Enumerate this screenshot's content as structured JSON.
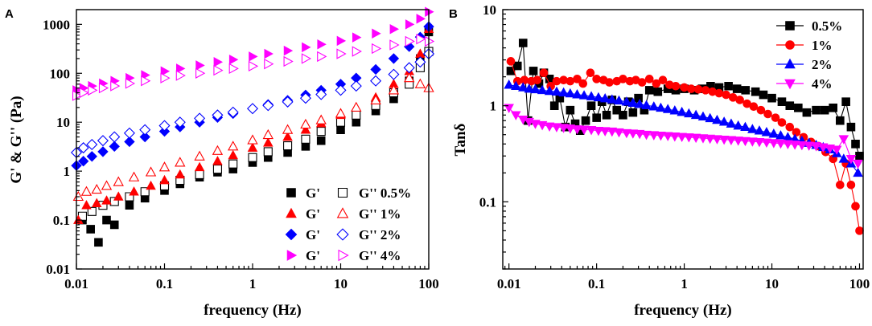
{
  "chart_data": [
    {
      "panel": "A",
      "type": "scatter",
      "xlabel": "frequency (Hz)",
      "ylabel": "G' & G'' (Pa)",
      "xscale": "log",
      "yscale": "log",
      "xlim": [
        0.01,
        100
      ],
      "ylim": [
        0.01,
        2000
      ],
      "xticks": [
        0.01,
        0.1,
        1,
        10,
        100
      ],
      "xtick_labels": [
        "0.01",
        "0.1",
        "1",
        "10",
        "100"
      ],
      "yticks": [
        0.01,
        0.1,
        1,
        10,
        100,
        1000
      ],
      "ytick_labels": [
        "0.01",
        "0.1",
        "1",
        "10",
        "100",
        "1000"
      ],
      "legend_position": "bottom-right",
      "legend_rows": [
        {
          "storage": "G'",
          "loss": "G''",
          "label": "0.5%",
          "color": "#000000"
        },
        {
          "storage": "G'",
          "loss": "G''",
          "label": "1%",
          "color": "#ff0000"
        },
        {
          "storage": "G'",
          "loss": "G''",
          "label": "2%",
          "color": "#0000ff"
        },
        {
          "storage": "G'",
          "loss": "G''",
          "label": "4%",
          "color": "#ff00ff"
        }
      ],
      "series": [
        {
          "name": "G' 0.5%",
          "marker": "square",
          "filled": true,
          "color": "#000000",
          "x": [
            0.0117,
            0.0145,
            0.0178,
            0.022,
            0.027,
            0.04,
            0.06,
            0.1,
            0.15,
            0.25,
            0.4,
            0.6,
            1,
            1.5,
            2.5,
            4,
            6,
            10,
            15,
            25,
            40,
            60,
            80,
            100
          ],
          "y": [
            0.1,
            0.065,
            0.035,
            0.1,
            0.08,
            0.2,
            0.28,
            0.4,
            0.55,
            0.75,
            0.95,
            1.1,
            1.5,
            1.9,
            2.4,
            3.2,
            4.2,
            7,
            10,
            17,
            30,
            70,
            200,
            700
          ]
        },
        {
          "name": "G'' 0.5%",
          "marker": "square",
          "filled": false,
          "color": "#000000",
          "x": [
            0.0117,
            0.015,
            0.02,
            0.027,
            0.04,
            0.06,
            0.1,
            0.15,
            0.25,
            0.4,
            0.6,
            1,
            1.5,
            2.5,
            4,
            6,
            10,
            15,
            25,
            40,
            60,
            80,
            100
          ],
          "y": [
            0.12,
            0.15,
            0.2,
            0.24,
            0.3,
            0.38,
            0.5,
            0.65,
            0.85,
            1.1,
            1.4,
            1.9,
            2.5,
            3.3,
            4.5,
            6.5,
            10,
            14,
            22,
            40,
            60,
            130,
            280
          ]
        },
        {
          "name": "G' 1%",
          "marker": "triangle-up",
          "filled": true,
          "color": "#ff0000",
          "x": [
            0.0105,
            0.013,
            0.017,
            0.022,
            0.03,
            0.045,
            0.07,
            0.1,
            0.15,
            0.25,
            0.4,
            0.6,
            1,
            1.5,
            2.5,
            4,
            6,
            10,
            15,
            25,
            40,
            60,
            80,
            100
          ],
          "y": [
            0.1,
            0.2,
            0.22,
            0.25,
            0.3,
            0.38,
            0.5,
            0.65,
            0.85,
            1.2,
            1.6,
            2.1,
            3,
            3.8,
            5,
            7,
            9.5,
            14,
            20,
            32,
            60,
            110,
            250,
            800
          ]
        },
        {
          "name": "G'' 1%",
          "marker": "triangle-up",
          "filled": false,
          "color": "#ff0000",
          "x": [
            0.0105,
            0.013,
            0.017,
            0.022,
            0.03,
            0.045,
            0.07,
            0.1,
            0.15,
            0.25,
            0.4,
            0.6,
            1,
            1.5,
            2.5,
            4,
            6,
            10,
            15,
            25,
            40,
            60,
            80,
            100
          ],
          "y": [
            0.3,
            0.38,
            0.42,
            0.5,
            0.6,
            0.75,
            0.95,
            1.2,
            1.5,
            2,
            2.6,
            3.2,
            4.3,
            5.5,
            7,
            9,
            11,
            15,
            20,
            28,
            45,
            80,
            60,
            50
          ]
        },
        {
          "name": "G' 2%",
          "marker": "diamond",
          "filled": true,
          "color": "#0000ff",
          "x": [
            0.01,
            0.012,
            0.015,
            0.02,
            0.027,
            0.04,
            0.06,
            0.1,
            0.15,
            0.25,
            0.4,
            0.6,
            1,
            1.5,
            2.5,
            4,
            6,
            10,
            15,
            25,
            40,
            60,
            80,
            100
          ],
          "y": [
            1.3,
            1.6,
            2,
            2.5,
            3.2,
            4,
            5,
            6.5,
            8,
            10,
            12.5,
            15,
            19,
            23,
            28,
            36,
            45,
            60,
            80,
            120,
            200,
            350,
            550,
            900
          ]
        },
        {
          "name": "G'' 2%",
          "marker": "diamond",
          "filled": false,
          "color": "#0000ff",
          "x": [
            0.01,
            0.012,
            0.015,
            0.02,
            0.027,
            0.04,
            0.06,
            0.1,
            0.15,
            0.25,
            0.4,
            0.6,
            1,
            1.5,
            2.5,
            4,
            6,
            10,
            15,
            25,
            40,
            60,
            80,
            100
          ],
          "y": [
            2.4,
            3,
            3.5,
            4.2,
            5,
            6,
            7,
            8.5,
            10,
            12,
            14,
            16,
            19,
            22,
            26,
            31,
            37,
            45,
            55,
            70,
            95,
            130,
            170,
            250
          ]
        },
        {
          "name": "G' 4%",
          "marker": "triangle-right",
          "filled": true,
          "color": "#ff00ff",
          "x": [
            0.01,
            0.012,
            0.015,
            0.02,
            0.027,
            0.04,
            0.06,
            0.1,
            0.15,
            0.25,
            0.4,
            0.6,
            1,
            1.5,
            2.5,
            4,
            6,
            10,
            15,
            25,
            40,
            60,
            80,
            100
          ],
          "y": [
            45,
            50,
            55,
            62,
            70,
            80,
            92,
            110,
            125,
            145,
            170,
            190,
            220,
            250,
            290,
            340,
            390,
            460,
            540,
            650,
            800,
            1000,
            1300,
            1800
          ]
        },
        {
          "name": "G'' 4%",
          "marker": "triangle-right",
          "filled": false,
          "color": "#ff00ff",
          "x": [
            0.01,
            0.012,
            0.015,
            0.02,
            0.027,
            0.04,
            0.06,
            0.1,
            0.15,
            0.25,
            0.4,
            0.6,
            1,
            1.5,
            2.5,
            4,
            6,
            10,
            15,
            25,
            40,
            60,
            80,
            100
          ],
          "y": [
            35,
            40,
            45,
            50,
            55,
            62,
            70,
            80,
            90,
            100,
            115,
            125,
            140,
            155,
            175,
            200,
            220,
            250,
            280,
            320,
            380,
            450,
            500,
            450
          ]
        }
      ]
    },
    {
      "panel": "B",
      "type": "line",
      "xlabel": "frequency (Hz)",
      "ylabel": "Tanδ",
      "xscale": "log",
      "yscale": "log",
      "xlim": [
        0.0085,
        110
      ],
      "ylim": [
        0.02,
        10
      ],
      "xticks": [
        0.01,
        0.1,
        1,
        10,
        100
      ],
      "xtick_labels": [
        "0.01",
        "0.1",
        "1",
        "10",
        "100"
      ],
      "yticks": [
        0.1,
        1,
        10
      ],
      "ytick_labels": [
        "0.1",
        "1",
        "10"
      ],
      "legend_position": "top-right",
      "series": [
        {
          "name": "0.5%",
          "marker": "square",
          "color": "#000000",
          "x": [
            0.0105,
            0.0125,
            0.0145,
            0.0165,
            0.019,
            0.022,
            0.025,
            0.029,
            0.033,
            0.038,
            0.044,
            0.05,
            0.057,
            0.065,
            0.075,
            0.087,
            0.1,
            0.115,
            0.13,
            0.15,
            0.17,
            0.2,
            0.23,
            0.26,
            0.3,
            0.35,
            0.4,
            0.5,
            0.65,
            0.8,
            1,
            1.3,
            1.6,
            2,
            2.5,
            3.2,
            4,
            5,
            6.5,
            8,
            10,
            13,
            16,
            20,
            25,
            32,
            40,
            50,
            60,
            70,
            80,
            90,
            100
          ],
          "y": [
            2.3,
            2.6,
            4.5,
            0.7,
            2.3,
            1.7,
            2.2,
            1.9,
            1.0,
            1.2,
            0.6,
            0.9,
            0.65,
            0.55,
            0.7,
            1.0,
            0.75,
            1.1,
            0.8,
            1.15,
            0.9,
            0.8,
            1.1,
            0.85,
            1.2,
            0.9,
            1.45,
            1.4,
            1.5,
            1.45,
            1.5,
            1.45,
            1.5,
            1.6,
            1.55,
            1.6,
            1.5,
            1.45,
            1.4,
            1.3,
            1.2,
            1.1,
            1.0,
            0.95,
            0.85,
            0.9,
            0.9,
            0.95,
            0.7,
            1.1,
            0.6,
            0.4,
            0.3
          ]
        },
        {
          "name": "1%",
          "marker": "circle",
          "color": "#ff0000",
          "x": [
            0.0105,
            0.0125,
            0.015,
            0.018,
            0.021,
            0.025,
            0.03,
            0.035,
            0.042,
            0.05,
            0.06,
            0.07,
            0.085,
            0.1,
            0.12,
            0.14,
            0.17,
            0.2,
            0.24,
            0.28,
            0.33,
            0.4,
            0.48,
            0.57,
            0.68,
            0.8,
            1,
            1.2,
            1.45,
            1.75,
            2.1,
            2.5,
            3,
            3.6,
            4.3,
            5.2,
            6.2,
            7.5,
            9,
            11,
            13,
            16,
            19,
            23,
            28,
            34,
            41,
            50,
            60,
            70,
            80,
            90,
            100
          ],
          "y": [
            2.9,
            1.8,
            1.85,
            1.8,
            1.85,
            2.2,
            1.6,
            1.8,
            1.85,
            1.8,
            1.9,
            1.7,
            2.2,
            1.9,
            1.85,
            1.75,
            1.8,
            1.9,
            1.8,
            1.85,
            1.75,
            1.9,
            1.7,
            1.85,
            1.65,
            1.6,
            1.55,
            1.5,
            1.48,
            1.45,
            1.4,
            1.35,
            1.3,
            1.22,
            1.15,
            1.05,
            0.98,
            0.9,
            0.82,
            0.75,
            0.67,
            0.6,
            0.53,
            0.47,
            0.42,
            0.38,
            0.33,
            0.28,
            0.15,
            0.25,
            0.15,
            0.09,
            0.05
          ]
        },
        {
          "name": "2%",
          "marker": "triangle-up",
          "color": "#0000ff",
          "x": [
            0.01,
            0.012,
            0.0145,
            0.017,
            0.02,
            0.024,
            0.029,
            0.035,
            0.042,
            0.05,
            0.06,
            0.072,
            0.087,
            0.105,
            0.125,
            0.15,
            0.18,
            0.22,
            0.26,
            0.31,
            0.37,
            0.45,
            0.54,
            0.65,
            0.78,
            0.94,
            1.13,
            1.36,
            1.64,
            1.97,
            2.37,
            2.85,
            3.43,
            4.13,
            4.97,
            6,
            7.2,
            8.7,
            10.5,
            12.6,
            15.2,
            18.3,
            22,
            26.5,
            32,
            38.5,
            46,
            55,
            66,
            80,
            96
          ],
          "y": [
            1.65,
            1.6,
            1.55,
            1.5,
            1.48,
            1.45,
            1.42,
            1.4,
            1.37,
            1.34,
            1.31,
            1.28,
            1.25,
            1.22,
            1.19,
            1.16,
            1.13,
            1.1,
            1.07,
            1.04,
            1.01,
            0.98,
            0.95,
            0.92,
            0.89,
            0.86,
            0.83,
            0.8,
            0.77,
            0.74,
            0.71,
            0.68,
            0.65,
            0.62,
            0.6,
            0.57,
            0.55,
            0.53,
            0.51,
            0.49,
            0.47,
            0.45,
            0.43,
            0.41,
            0.39,
            0.37,
            0.35,
            0.32,
            0.28,
            0.25,
            0.2
          ]
        },
        {
          "name": "4%",
          "marker": "triangle-down",
          "color": "#ff00ff",
          "x": [
            0.01,
            0.012,
            0.0145,
            0.017,
            0.02,
            0.024,
            0.029,
            0.035,
            0.042,
            0.05,
            0.06,
            0.072,
            0.087,
            0.105,
            0.125,
            0.15,
            0.18,
            0.22,
            0.26,
            0.31,
            0.37,
            0.45,
            0.54,
            0.65,
            0.78,
            0.94,
            1.13,
            1.36,
            1.64,
            1.97,
            2.37,
            2.85,
            3.43,
            4.13,
            4.97,
            6,
            7.2,
            8.7,
            10.5,
            12.6,
            15.2,
            18.3,
            22,
            26.5,
            32,
            38.5,
            46,
            55,
            66,
            80,
            96
          ],
          "y": [
            0.95,
            0.8,
            0.72,
            0.68,
            0.65,
            0.63,
            0.61,
            0.6,
            0.59,
            0.58,
            0.57,
            0.565,
            0.56,
            0.55,
            0.545,
            0.54,
            0.53,
            0.52,
            0.515,
            0.51,
            0.5,
            0.495,
            0.49,
            0.485,
            0.48,
            0.475,
            0.47,
            0.465,
            0.46,
            0.455,
            0.45,
            0.445,
            0.44,
            0.435,
            0.43,
            0.425,
            0.42,
            0.415,
            0.41,
            0.405,
            0.4,
            0.395,
            0.39,
            0.385,
            0.38,
            0.37,
            0.36,
            0.35,
            0.45,
            0.28,
            0.25
          ]
        }
      ]
    }
  ]
}
